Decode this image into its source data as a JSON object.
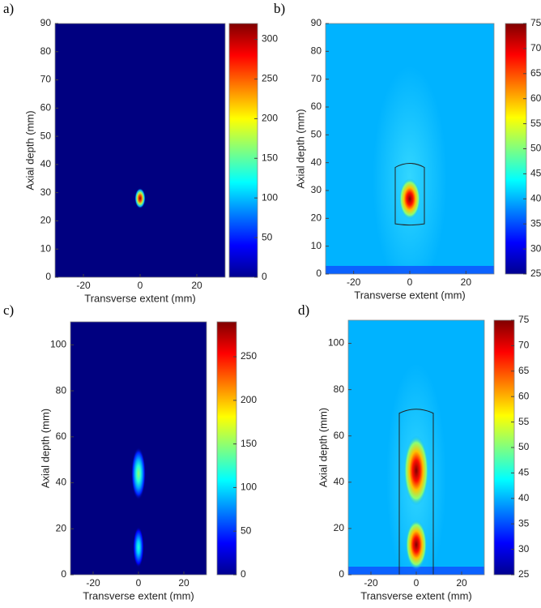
{
  "chart_data": [
    {
      "type": "heatmap",
      "label": "a)",
      "xlabel": "Transverse extent (mm)",
      "ylabel": "Axial depth (mm)",
      "xlim": [
        -30,
        30
      ],
      "xticks": [
        -20,
        0,
        20
      ],
      "ylim": [
        0,
        90
      ],
      "yticks": [
        0,
        10,
        20,
        30,
        40,
        50,
        60,
        70,
        80,
        90
      ],
      "clim": [
        0,
        320
      ],
      "cticks": [
        0,
        50,
        100,
        150,
        200,
        250,
        300
      ],
      "background": 0,
      "hotspots": [
        {
          "x": 0,
          "y": 28,
          "value": 320
        }
      ]
    },
    {
      "type": "heatmap",
      "label": "b)",
      "xlabel": "Transverse extent (mm)",
      "ylabel": "Axial depth (mm)",
      "xlim": [
        -30,
        30
      ],
      "xticks": [
        -20,
        0,
        20
      ],
      "ylim": [
        0,
        90
      ],
      "yticks": [
        0,
        10,
        20,
        30,
        40,
        50,
        60,
        70,
        80,
        90
      ],
      "clim": [
        25,
        75
      ],
      "cticks": [
        25,
        30,
        35,
        40,
        45,
        50,
        55,
        60,
        65,
        70,
        75
      ],
      "background": 40,
      "hotspots": [
        {
          "x": 0,
          "y": 27,
          "value": 75
        }
      ]
    },
    {
      "type": "heatmap",
      "label": "c)",
      "xlabel": "Transverse extent (mm)",
      "ylabel": "Axial depth (mm)",
      "xlim": [
        -30,
        30
      ],
      "xticks": [
        -20,
        0,
        20
      ],
      "ylim": [
        0,
        110
      ],
      "yticks": [
        0,
        20,
        40,
        60,
        80,
        100
      ],
      "clim": [
        0,
        290
      ],
      "cticks": [
        0,
        50,
        100,
        150,
        200,
        250
      ],
      "background": 0,
      "hotspots": [
        {
          "x": 0,
          "y": 44,
          "value": 150
        },
        {
          "x": 0,
          "y": 12,
          "value": 120
        }
      ]
    },
    {
      "type": "heatmap",
      "label": "d)",
      "xlabel": "Transverse extent (mm)",
      "ylabel": "Axial depth (mm)",
      "xlim": [
        -30,
        30
      ],
      "xticks": [
        -20,
        0,
        20
      ],
      "ylim": [
        0,
        110
      ],
      "yticks": [
        0,
        20,
        40,
        60,
        80,
        100
      ],
      "clim": [
        25,
        75
      ],
      "cticks": [
        25,
        30,
        35,
        40,
        45,
        50,
        55,
        60,
        65,
        70,
        75
      ],
      "background": 40,
      "hotspots": [
        {
          "x": 0,
          "y": 45,
          "value": 75
        },
        {
          "x": 0,
          "y": 13,
          "value": 75
        }
      ]
    }
  ]
}
